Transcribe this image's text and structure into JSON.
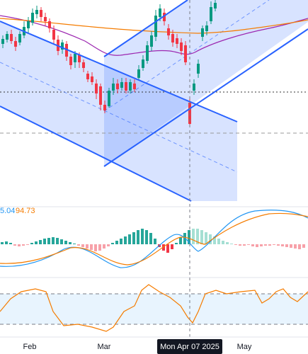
{
  "indicator_values": {
    "macd": "5.04",
    "signal": "94.73"
  },
  "time_axis": {
    "labels": [
      "Feb",
      "Mar",
      "May"
    ],
    "crosshair": "Mon Apr 07 2025"
  }
}
